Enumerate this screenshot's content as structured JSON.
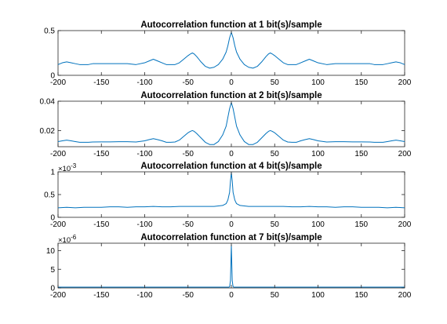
{
  "figure": {
    "background": "#ffffff",
    "line_color": "#0072BD",
    "axis_color": "#262626"
  },
  "chart_data": [
    {
      "type": "line",
      "title": "Autocorrelation function at 1 bit(s)/sample",
      "xlim": [
        -200,
        200
      ],
      "ylim": [
        0,
        0.5
      ],
      "xticks": [
        -200,
        -150,
        -100,
        -50,
        0,
        50,
        100,
        150,
        200
      ],
      "xtick_labels": [
        "-200",
        "-150",
        "-100",
        "-50",
        "0",
        "50",
        "100",
        "150",
        "200"
      ],
      "yticks": [
        0,
        0.5
      ],
      "ytick_labels": [
        "0",
        "0.5"
      ],
      "exponent_label": "",
      "x": [
        -200,
        -195,
        -190,
        -185,
        -180,
        -175,
        -170,
        -165,
        -160,
        -150,
        -140,
        -130,
        -120,
        -110,
        -100,
        -95,
        -90,
        -85,
        -80,
        -75,
        -70,
        -65,
        -60,
        -55,
        -50,
        -47,
        -45,
        -43,
        -40,
        -35,
        -30,
        -25,
        -20,
        -15,
        -10,
        -6,
        -4,
        -2,
        0,
        2,
        4,
        6,
        10,
        15,
        20,
        25,
        30,
        35,
        40,
        43,
        45,
        47,
        50,
        55,
        60,
        65,
        70,
        75,
        80,
        85,
        90,
        95,
        100,
        110,
        120,
        130,
        140,
        150,
        160,
        165,
        170,
        175,
        180,
        185,
        190,
        195,
        200
      ],
      "y": [
        0.12,
        0.14,
        0.15,
        0.14,
        0.13,
        0.12,
        0.12,
        0.12,
        0.13,
        0.13,
        0.13,
        0.13,
        0.13,
        0.12,
        0.14,
        0.16,
        0.18,
        0.16,
        0.14,
        0.12,
        0.12,
        0.12,
        0.14,
        0.18,
        0.22,
        0.24,
        0.25,
        0.24,
        0.21,
        0.15,
        0.1,
        0.08,
        0.09,
        0.12,
        0.18,
        0.26,
        0.33,
        0.42,
        0.48,
        0.42,
        0.33,
        0.26,
        0.18,
        0.12,
        0.09,
        0.08,
        0.1,
        0.15,
        0.21,
        0.24,
        0.25,
        0.24,
        0.22,
        0.18,
        0.14,
        0.12,
        0.12,
        0.12,
        0.14,
        0.16,
        0.18,
        0.16,
        0.14,
        0.12,
        0.13,
        0.13,
        0.13,
        0.13,
        0.13,
        0.12,
        0.12,
        0.12,
        0.13,
        0.14,
        0.15,
        0.14,
        0.12
      ]
    },
    {
      "type": "line",
      "title": "Autocorrelation function at 2 bit(s)/sample",
      "xlim": [
        -200,
        200
      ],
      "ylim": [
        0.009,
        0.04
      ],
      "xticks": [
        -200,
        -150,
        -100,
        -50,
        0,
        50,
        100,
        150,
        200
      ],
      "xtick_labels": [
        "-200",
        "-150",
        "-100",
        "-50",
        "0",
        "50",
        "100",
        "150",
        "200"
      ],
      "yticks": [
        0.02,
        0.04
      ],
      "ytick_labels": [
        "0.02",
        "0.04"
      ],
      "exponent_label": "",
      "x": [
        -200,
        -195,
        -190,
        -185,
        -180,
        -175,
        -170,
        -165,
        -160,
        -150,
        -140,
        -130,
        -120,
        -110,
        -100,
        -95,
        -90,
        -85,
        -80,
        -75,
        -70,
        -65,
        -60,
        -55,
        -50,
        -47,
        -45,
        -43,
        -40,
        -35,
        -30,
        -25,
        -20,
        -15,
        -10,
        -6,
        -4,
        -2,
        0,
        2,
        4,
        6,
        10,
        15,
        20,
        25,
        30,
        35,
        40,
        43,
        45,
        47,
        50,
        55,
        60,
        65,
        70,
        75,
        80,
        85,
        90,
        95,
        100,
        110,
        120,
        130,
        140,
        150,
        160,
        165,
        170,
        175,
        180,
        185,
        190,
        195,
        200
      ],
      "y": [
        0.0125,
        0.013,
        0.0135,
        0.013,
        0.0125,
        0.012,
        0.012,
        0.012,
        0.0122,
        0.0123,
        0.0123,
        0.0124,
        0.0124,
        0.0122,
        0.013,
        0.0138,
        0.0145,
        0.0138,
        0.013,
        0.012,
        0.012,
        0.0122,
        0.0135,
        0.016,
        0.0185,
        0.0195,
        0.02,
        0.0195,
        0.018,
        0.015,
        0.012,
        0.0105,
        0.0105,
        0.0125,
        0.017,
        0.023,
        0.029,
        0.035,
        0.039,
        0.035,
        0.029,
        0.023,
        0.017,
        0.0125,
        0.0105,
        0.0105,
        0.012,
        0.015,
        0.018,
        0.0195,
        0.02,
        0.0195,
        0.0185,
        0.016,
        0.0135,
        0.0122,
        0.012,
        0.012,
        0.013,
        0.0138,
        0.0145,
        0.0138,
        0.013,
        0.0122,
        0.0124,
        0.0124,
        0.0123,
        0.0123,
        0.0122,
        0.012,
        0.012,
        0.012,
        0.0125,
        0.013,
        0.0135,
        0.013,
        0.0125
      ]
    },
    {
      "type": "line",
      "title": "Autocorrelation function at 4 bit(s)/sample",
      "xlim": [
        -200,
        200
      ],
      "ylim": [
        0,
        0.001
      ],
      "xticks": [
        -200,
        -150,
        -100,
        -50,
        0,
        50,
        100,
        150,
        200
      ],
      "xtick_labels": [
        "-200",
        "-150",
        "-100",
        "-50",
        "0",
        "50",
        "100",
        "150",
        "200"
      ],
      "yticks": [
        0,
        0.0005,
        0.001
      ],
      "ytick_labels": [
        "0",
        "0.5",
        "1"
      ],
      "exponent_label": "×10",
      "exponent_power": "-3",
      "x": [
        -200,
        -190,
        -180,
        -170,
        -160,
        -150,
        -140,
        -130,
        -120,
        -110,
        -100,
        -90,
        -80,
        -70,
        -60,
        -50,
        -40,
        -30,
        -20,
        -15,
        -10,
        -6,
        -4,
        -2,
        -1,
        0,
        1,
        2,
        4,
        6,
        10,
        15,
        20,
        30,
        40,
        50,
        60,
        70,
        80,
        90,
        100,
        110,
        120,
        130,
        140,
        150,
        160,
        170,
        180,
        190,
        200
      ],
      "y": [
        0.00021,
        0.00022,
        0.00021,
        0.00022,
        0.00022,
        0.00022,
        0.00023,
        0.00023,
        0.00022,
        0.00023,
        0.00023,
        0.00024,
        0.00023,
        0.00023,
        0.00024,
        0.00024,
        0.00024,
        0.00024,
        0.00024,
        0.00025,
        0.00026,
        0.0003,
        0.00038,
        0.00055,
        0.0008,
        0.00098,
        0.0008,
        0.00055,
        0.00038,
        0.0003,
        0.00026,
        0.00025,
        0.00024,
        0.00024,
        0.00024,
        0.00024,
        0.00024,
        0.00023,
        0.00023,
        0.00024,
        0.00023,
        0.00023,
        0.00022,
        0.00023,
        0.00023,
        0.00022,
        0.00022,
        0.00022,
        0.00021,
        0.00022,
        0.00021
      ]
    },
    {
      "type": "line",
      "title": "Autocorrelation function at 7 bit(s)/sample",
      "xlim": [
        -200,
        200
      ],
      "ylim": [
        0,
        1.2e-05
      ],
      "xticks": [
        -200,
        -150,
        -100,
        -50,
        0,
        50,
        100,
        150,
        200
      ],
      "xtick_labels": [
        "-200",
        "-150",
        "-100",
        "-50",
        "0",
        "50",
        "100",
        "150",
        "200"
      ],
      "yticks": [
        0,
        5e-06,
        1e-05
      ],
      "ytick_labels": [
        "0",
        "5",
        "10"
      ],
      "exponent_label": "×10",
      "exponent_power": "-6",
      "x": [
        -200,
        -150,
        -100,
        -50,
        -10,
        -3,
        -2,
        -1,
        0,
        1,
        2,
        3,
        10,
        50,
        100,
        150,
        200
      ],
      "y": [
        2e-07,
        2e-07,
        2e-07,
        2e-07,
        2e-07,
        2e-07,
        3e-07,
        2e-06,
        1.15e-05,
        2e-06,
        3e-07,
        2e-07,
        2e-07,
        2e-07,
        2e-07,
        2e-07,
        2e-07
      ]
    }
  ]
}
